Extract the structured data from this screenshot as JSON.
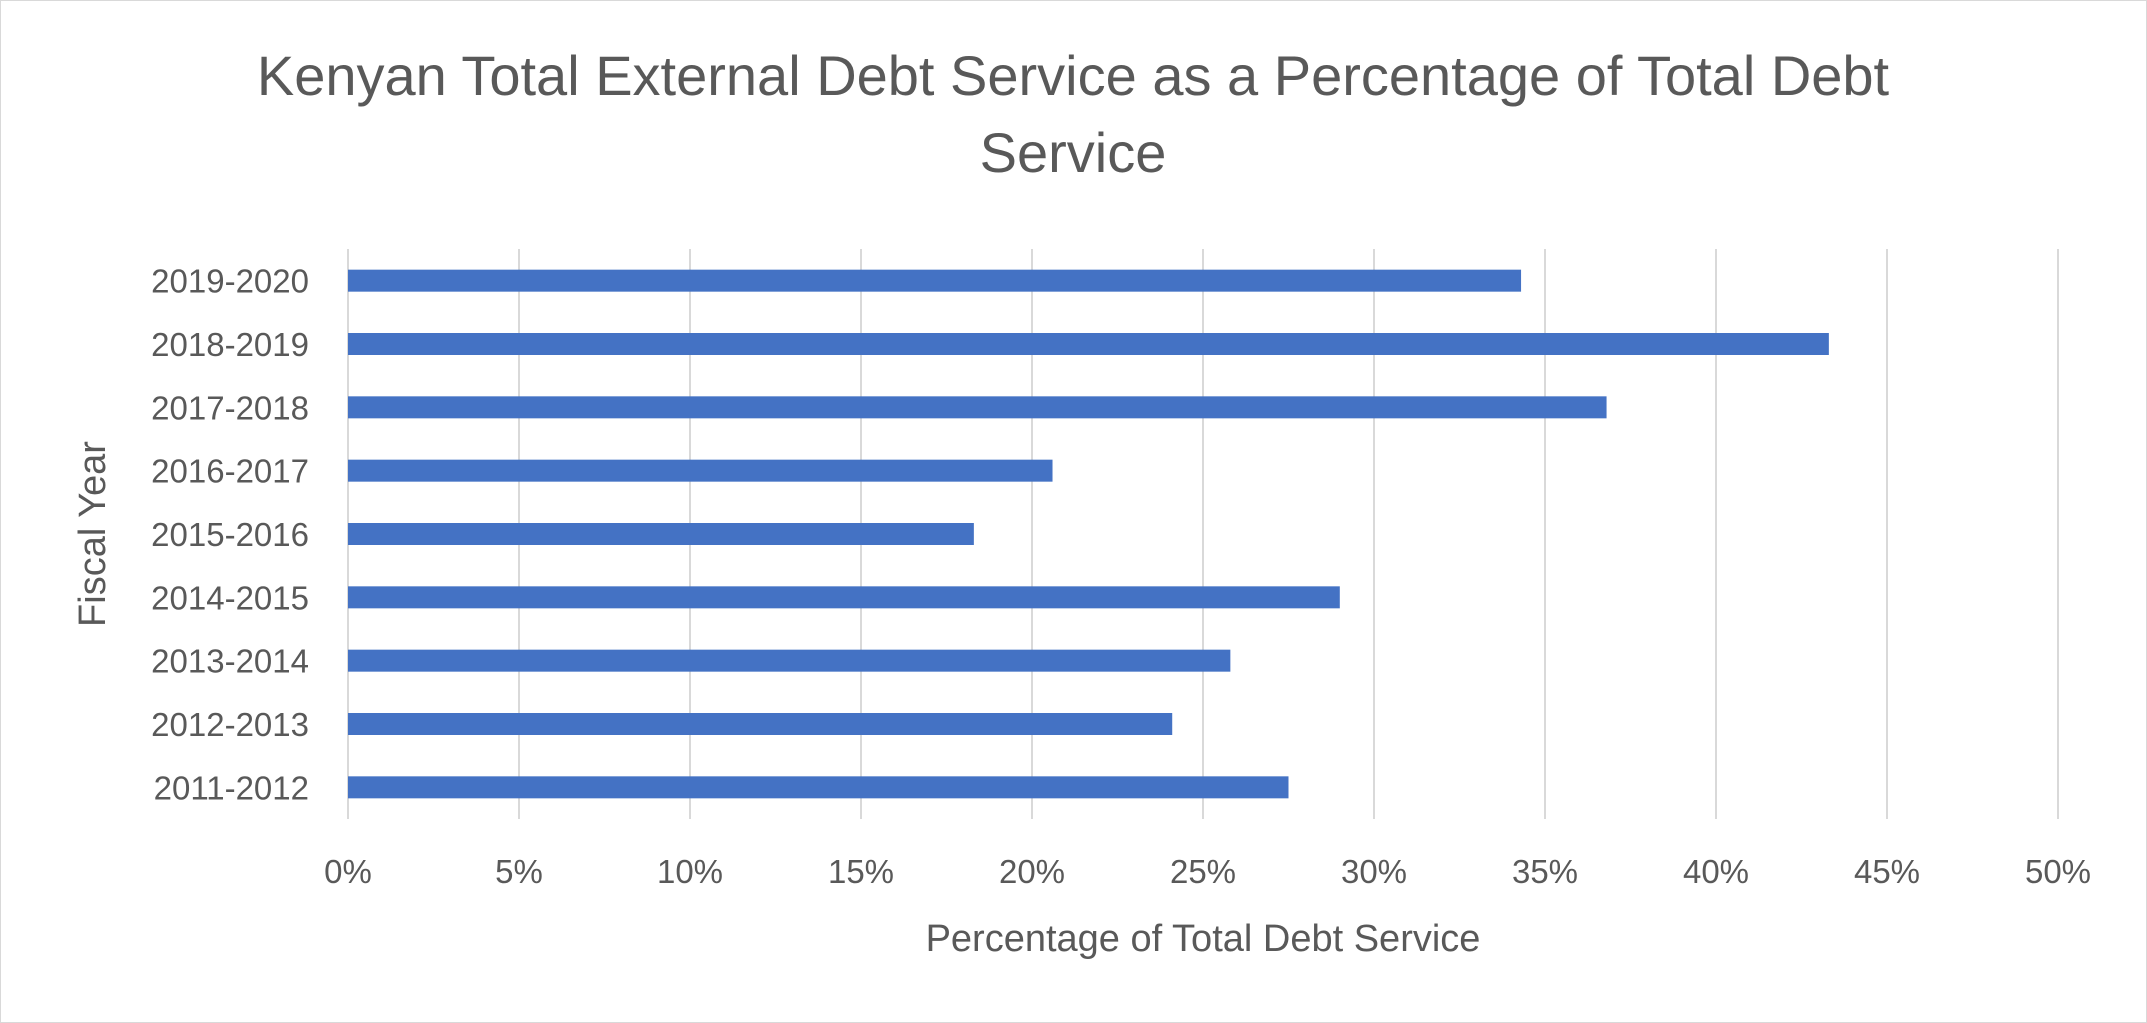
{
  "chart_data": {
    "type": "bar",
    "orientation": "horizontal",
    "title_lines": [
      "Kenyan Total External Debt Service as a Percentage of Total Debt",
      "Service"
    ],
    "xlabel": "Percentage of Total Debt Service",
    "ylabel": "Fiscal Year",
    "xlim": [
      0,
      50
    ],
    "x_ticks": [
      "0%",
      "5%",
      "10%",
      "15%",
      "20%",
      "25%",
      "30%",
      "35%",
      "40%",
      "45%",
      "50%"
    ],
    "categories": [
      "2011-2012",
      "2012-2013",
      "2013-2014",
      "2014-2015",
      "2015-2016",
      "2016-2017",
      "2017-2018",
      "2018-2019",
      "2019-2020"
    ],
    "values": [
      27.5,
      24.1,
      25.8,
      29.0,
      18.3,
      20.6,
      36.8,
      43.3,
      34.3
    ],
    "grid": true,
    "legend": "none",
    "colors": {
      "bar": "#4472c4",
      "grid": "#d9d9d9",
      "text": "#595959",
      "border": "#d9d9d9"
    }
  }
}
